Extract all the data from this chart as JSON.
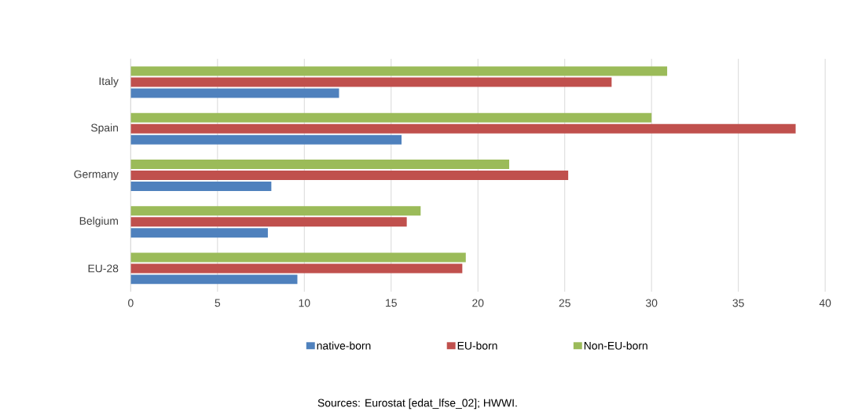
{
  "chart_data": {
    "type": "bar",
    "orientation": "horizontal",
    "categories": [
      "Italy",
      "Spain",
      "Germany",
      "Belgium",
      "EU-28"
    ],
    "series": [
      {
        "name": "native-born",
        "color": "#4f81bd",
        "values": [
          12.0,
          15.6,
          8.1,
          7.9,
          9.6
        ]
      },
      {
        "name": "EU-born",
        "color": "#c0504d",
        "values": [
          27.7,
          38.3,
          25.2,
          15.9,
          19.1
        ]
      },
      {
        "name": "Non-EU-born",
        "color": "#9bbb59",
        "values": [
          30.9,
          30.0,
          21.8,
          16.7,
          19.3
        ]
      }
    ],
    "xlim": [
      0,
      40
    ],
    "xticks": [
      0,
      5,
      10,
      15,
      20,
      25,
      30,
      35,
      40
    ],
    "grid": "x",
    "legend": "bottom",
    "annotations": [
      "Sources: Eurostat [edat_lfse_02]; HWWI."
    ]
  }
}
